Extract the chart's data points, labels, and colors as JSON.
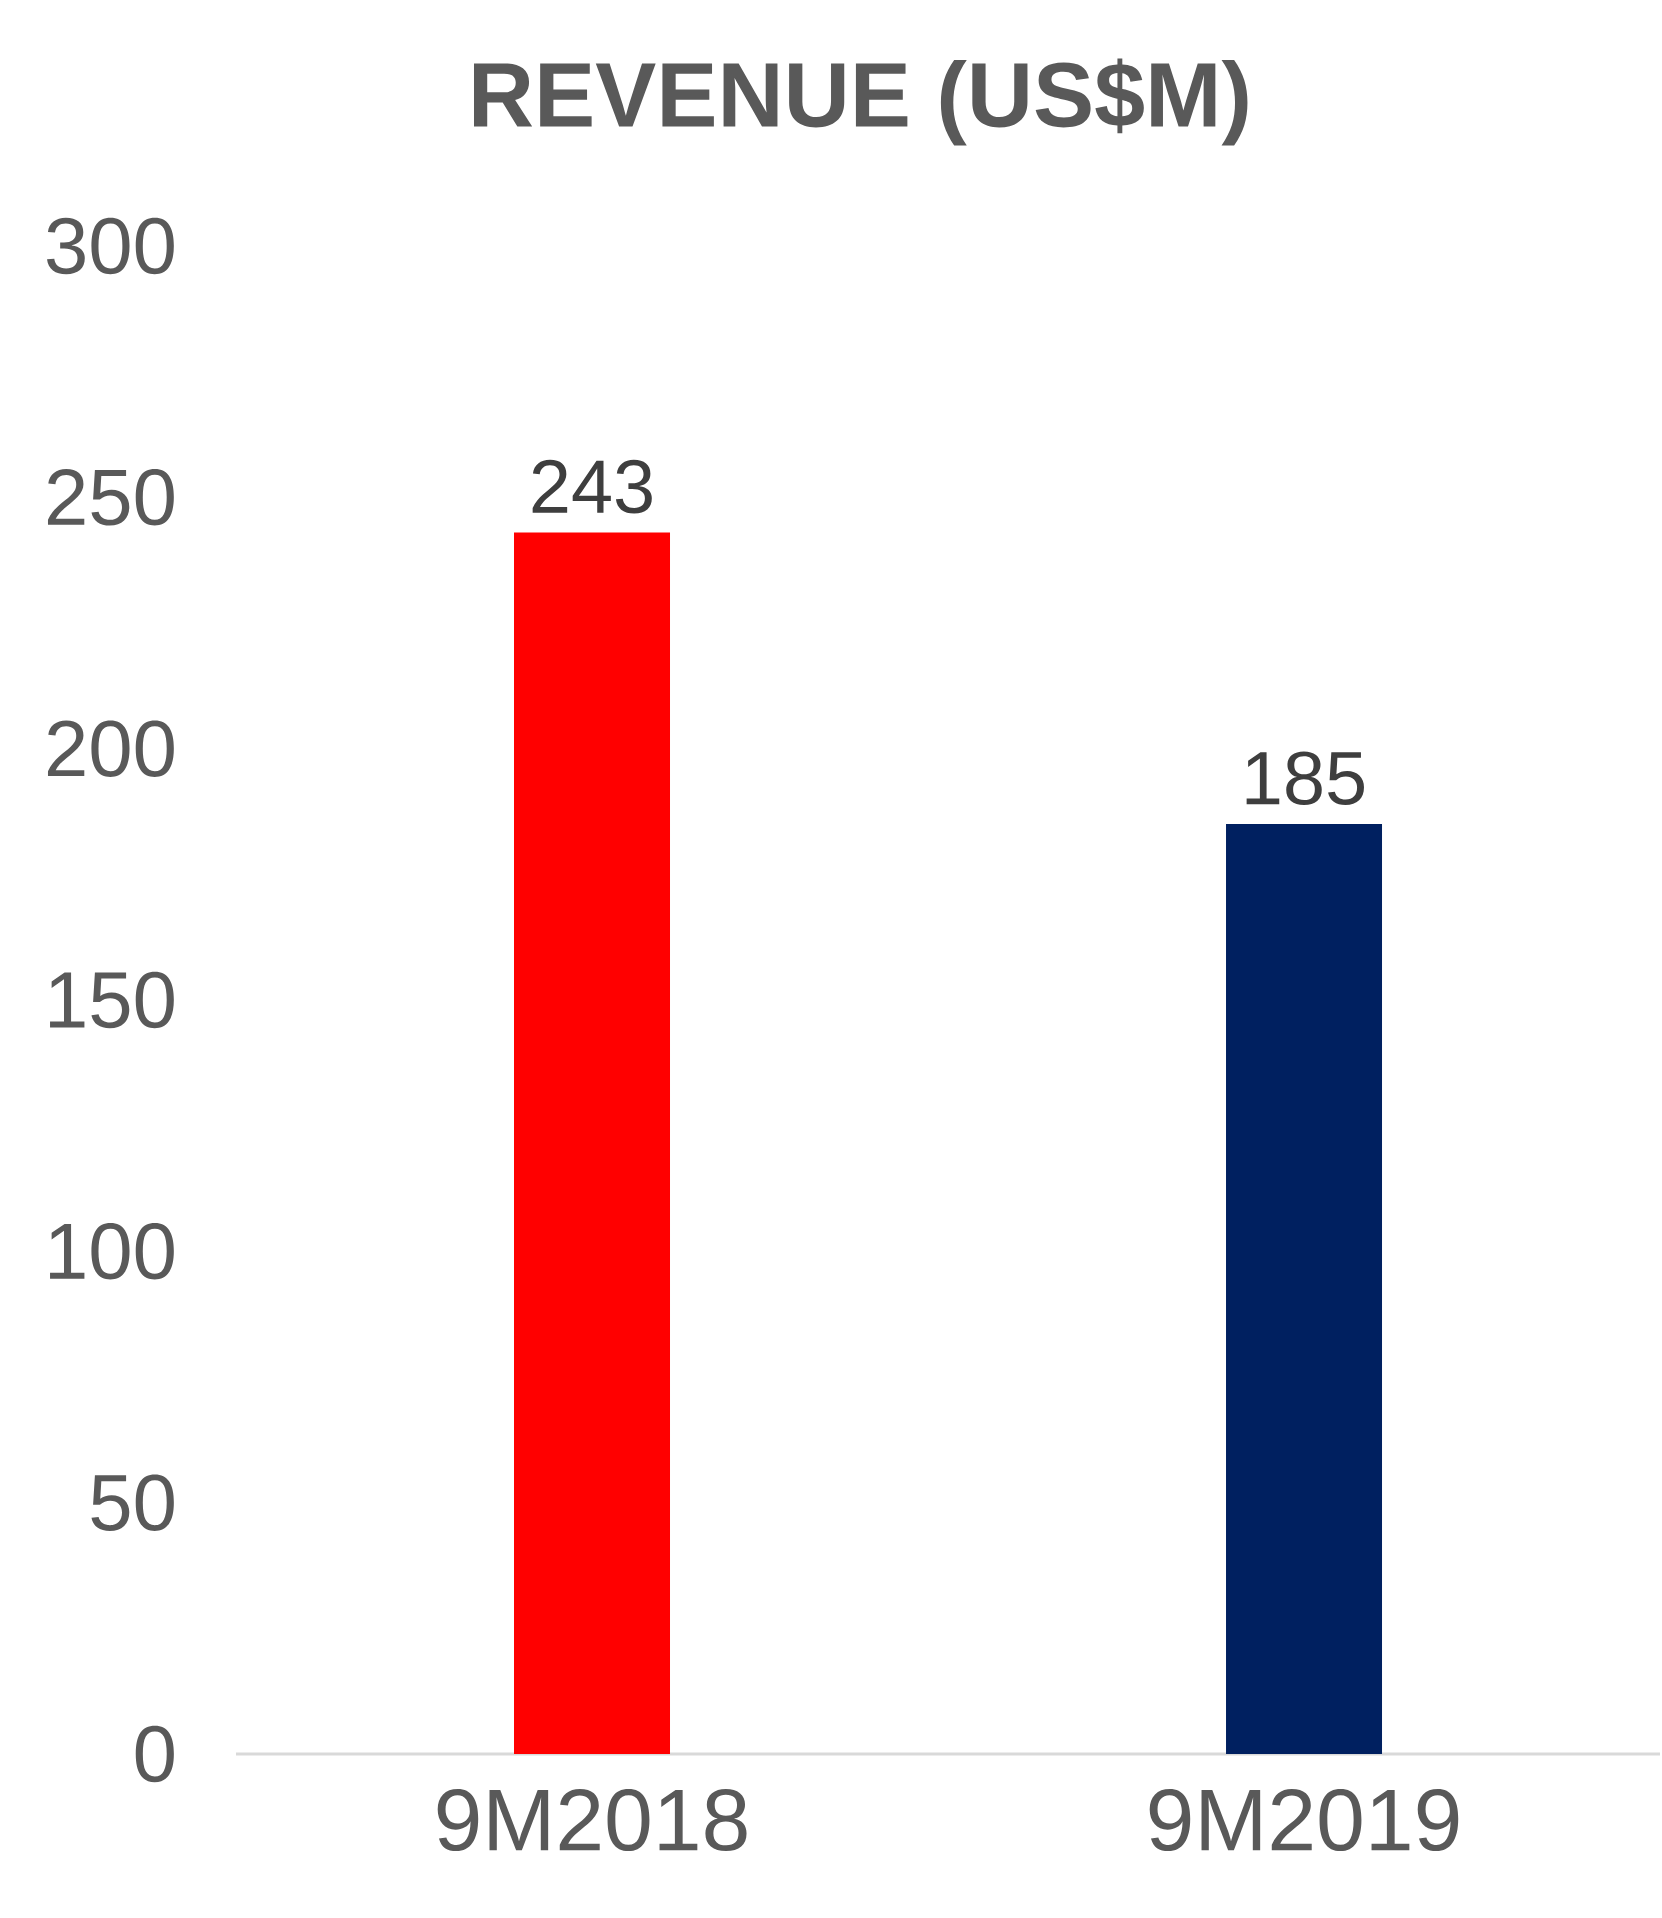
{
  "chart_data": {
    "type": "bar",
    "title": "REVENUE (US$M)",
    "categories": [
      "9M2018",
      "9M2019"
    ],
    "values": [
      243,
      185
    ],
    "colors": [
      "#ff0000",
      "#002060"
    ],
    "ylim": [
      0,
      300
    ],
    "yticks": [
      0,
      50,
      100,
      150,
      200,
      250,
      300
    ],
    "data_labels": true
  }
}
